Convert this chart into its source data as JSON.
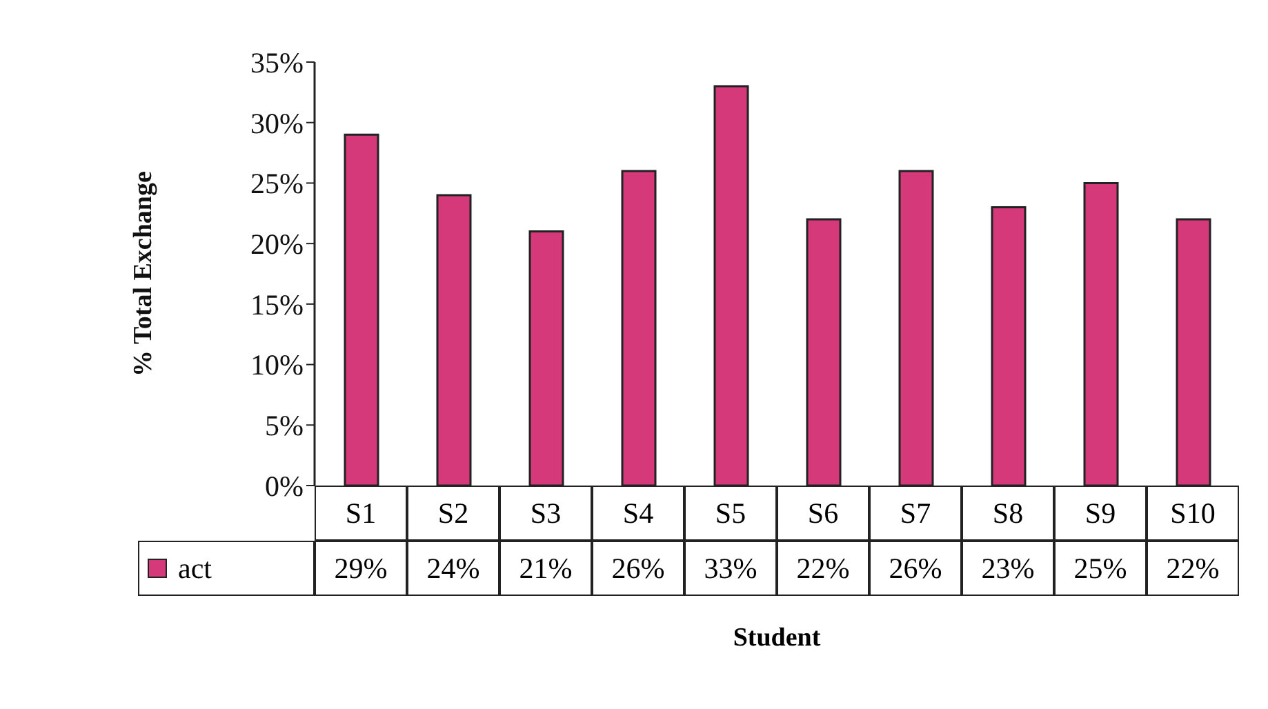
{
  "chart_data": {
    "type": "bar",
    "xlabel": "Student",
    "ylabel": "% Total Exchange",
    "categories": [
      "S1",
      "S2",
      "S3",
      "S4",
      "S5",
      "S6",
      "S7",
      "S8",
      "S9",
      "S10"
    ],
    "series": [
      {
        "name": "act",
        "color": "#d6397a",
        "values": [
          29,
          24,
          21,
          26,
          33,
          22,
          26,
          23,
          25,
          22
        ],
        "value_labels": [
          "29%",
          "24%",
          "21%",
          "26%",
          "33%",
          "22%",
          "26%",
          "23%",
          "25%",
          "22%"
        ]
      }
    ],
    "ylim": [
      0,
      35
    ],
    "yticks": [
      {
        "value": 0,
        "label": "0%"
      },
      {
        "value": 5,
        "label": "5%"
      },
      {
        "value": 10,
        "label": "10%"
      },
      {
        "value": 15,
        "label": "15%"
      },
      {
        "value": 20,
        "label": "20%"
      },
      {
        "value": 25,
        "label": "25%"
      },
      {
        "value": 30,
        "label": "30%"
      },
      {
        "value": 35,
        "label": "35%"
      }
    ],
    "grid": false,
    "legend": "bottom"
  }
}
